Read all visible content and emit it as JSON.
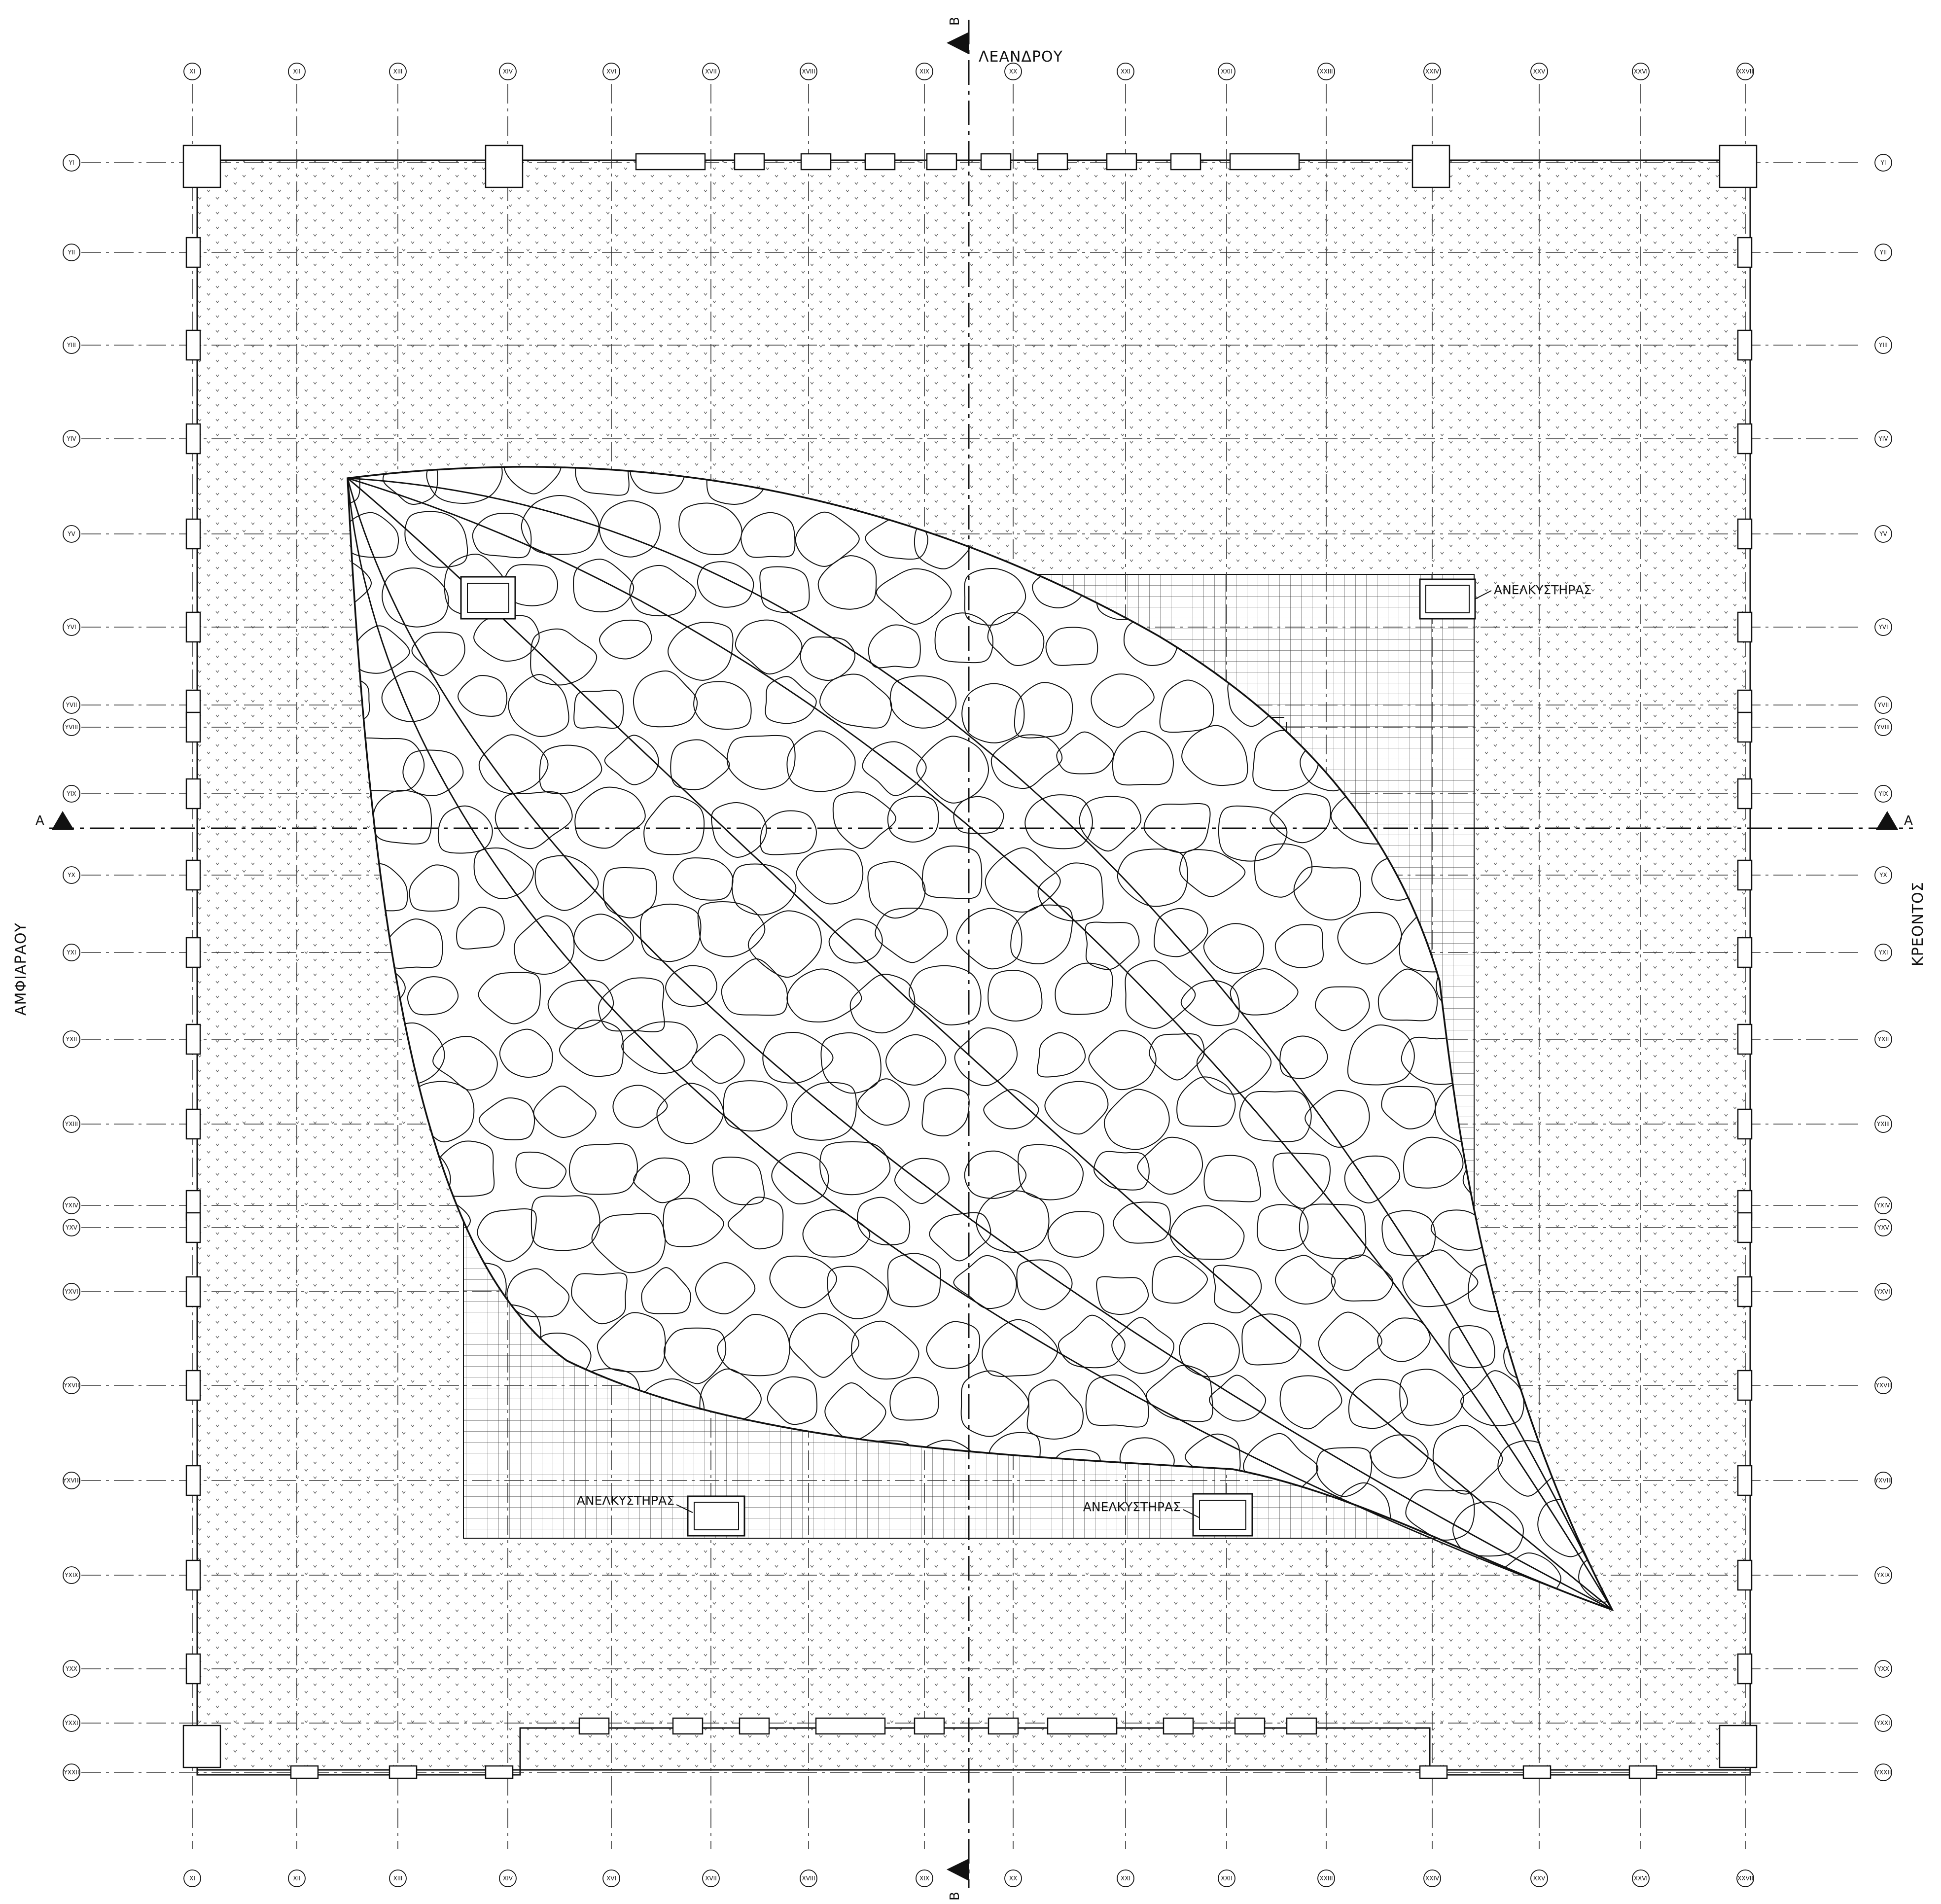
{
  "streets": {
    "north": "ΛΕΑΝΔΡΟΥ",
    "west": "ΑΜΦΙΑΡΑΟΥ",
    "east": "ΚΡΕΟΝΤΟΣ"
  },
  "section_marks": {
    "horizontal": "A",
    "vertical": "B"
  },
  "grid_x": [
    "XI",
    "XII",
    "XIII",
    "XIV",
    "XVI",
    "XVII",
    "XVIII",
    "XIX",
    "XX",
    "XXI",
    "XXII",
    "XXIII",
    "XXIV",
    "XXV",
    "XXVI",
    "XXVII"
  ],
  "grid_y": [
    "YI",
    "YII",
    "YIII",
    "YIV",
    "YV",
    "YVI",
    "YVII",
    "YVIII",
    "YIX",
    "YX",
    "YXI",
    "YXII",
    "YXIII",
    "YXIV",
    "YXV",
    "YXVI",
    "YXVII",
    "YXVIII",
    "YXIX",
    "YXX",
    "YXXI",
    "YXXII"
  ],
  "elevators": [
    {
      "label": "ΑΝΕΛΚΥΣΤΗΡΑΣ",
      "position": "north-east"
    },
    {
      "label": "ΑΝΕΛΚΥΣΤΗΡΑΣ",
      "position": "south-west"
    },
    {
      "label": "ΑΝΕΛΚΥΣΤΗΡΑΣ",
      "position": "south"
    },
    {
      "label": "",
      "position": "north-west"
    }
  ],
  "colors": {
    "line": "#111111",
    "paper": "#ffffff",
    "hatch": "#555555"
  }
}
